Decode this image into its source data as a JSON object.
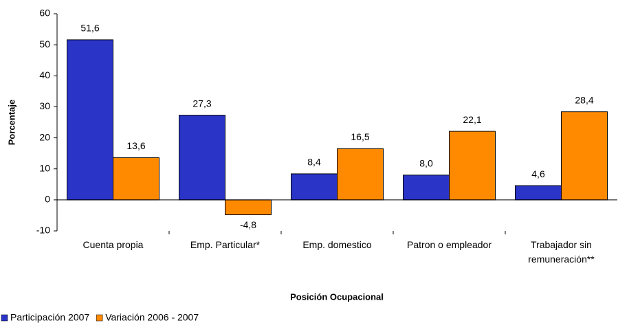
{
  "chart_data": {
    "type": "bar",
    "x_label": "Posición Ocupacional",
    "y_label": "Porcentaje",
    "categories": [
      "Cuenta propia",
      "Emp. Particular*",
      "Emp. domestico",
      "Patron o empleador",
      "Trabajador  sin remuneración**"
    ],
    "series": [
      {
        "name": "Participación 2007",
        "color": "#2a35c8",
        "values": [
          51.6,
          27.3,
          8.4,
          8.0,
          4.6
        ],
        "value_labels": [
          "51,6",
          "27,3",
          "8,4",
          "8,0",
          "4,6"
        ]
      },
      {
        "name": "Variación 2006 - 2007",
        "color": "#ff8a00",
        "values": [
          13.6,
          -4.8,
          16.5,
          22.1,
          28.4
        ],
        "value_labels": [
          "13,6",
          "-4,8",
          "16,5",
          "22,1",
          "28,4"
        ]
      }
    ],
    "ylim": [
      -10,
      60
    ],
    "yticks": [
      -10,
      0,
      10,
      20,
      30,
      40,
      50,
      60
    ],
    "grid": false,
    "legend": "bottom-left"
  }
}
